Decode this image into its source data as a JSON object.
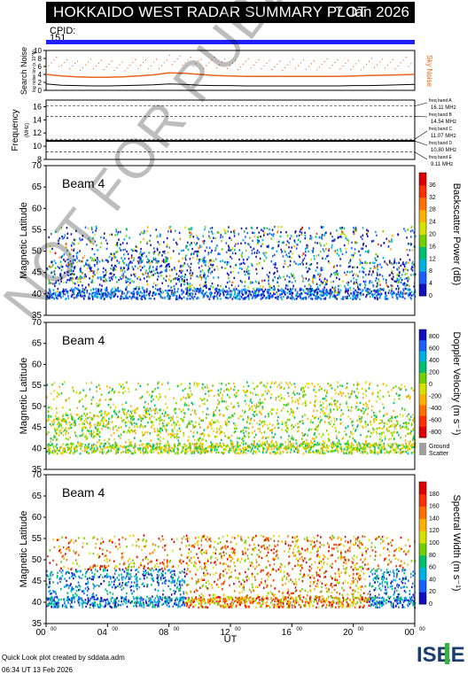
{
  "title": "HOKKAIDO WEST RADAR SUMMARY PLOT",
  "date": "7 Jan 2026",
  "cpid_label": "CPID:",
  "cpid_value": "151",
  "footer": {
    "line1": "Quick Look plot created by sddata.adm",
    "line2": "06:34 UT 13 Feb 2026"
  },
  "logo_text": "ISEE",
  "watermark": "NOT FOR PUBLICATION",
  "colors": {
    "cpid_bar": "#1f1fff",
    "sky_noise": "#e8641a",
    "search_noise": "#000000",
    "ground_scatter": "#a0a0a0"
  },
  "chart_data": [
    {
      "type": "line",
      "panel": "noise",
      "ylabel": "Search Noise",
      "ylabel_sub": "log noise lev (x 10^N)",
      "right_label": "Sky Noise",
      "yticks": [
        "0",
        "2",
        "4",
        "6",
        "8",
        "10"
      ],
      "ylim": [
        0,
        10
      ],
      "x": [
        0,
        1,
        2,
        3,
        4,
        5,
        6,
        7,
        8,
        9,
        10,
        11,
        12,
        13,
        14,
        15,
        16,
        17,
        18,
        19,
        20,
        21,
        22,
        23,
        24
      ],
      "series": [
        {
          "name": "Sky Noise",
          "values": [
            4.0,
            3.6,
            3.4,
            3.3,
            3.3,
            3.4,
            3.6,
            3.9,
            4.4,
            4.3,
            4.0,
            3.7,
            3.6,
            3.5,
            3.5,
            3.5,
            3.5,
            3.5,
            3.5,
            3.5,
            3.6,
            3.7,
            3.8,
            3.9,
            4.0
          ]
        },
        {
          "name": "Search Noise",
          "values": [
            1.6,
            1.3,
            1.2,
            1.1,
            1.1,
            1.2,
            1.3,
            1.4,
            1.6,
            1.5,
            1.3,
            1.2,
            1.2,
            1.1,
            1.1,
            1.1,
            1.1,
            1.1,
            1.1,
            1.1,
            1.2,
            1.2,
            1.3,
            1.4,
            1.5
          ]
        }
      ]
    },
    {
      "type": "line",
      "panel": "frequency",
      "ylabel": "Frequency",
      "ylabel_sub": "(MHz)",
      "yticks": [
        "8",
        "10",
        "12",
        "14",
        "16"
      ],
      "ylim": [
        8,
        17
      ],
      "x": [
        0,
        24
      ],
      "series": [
        {
          "name": "freq band A",
          "values": [
            10.8,
            10.8
          ]
        }
      ],
      "bands": [
        {
          "name": "freq band A",
          "freq": "16.11 MHz",
          "value": 16.11
        },
        {
          "name": "freq band B",
          "freq": "14.54 MHz",
          "value": 14.54
        },
        {
          "name": "freq band C",
          "freq": "11.07 MHz",
          "value": 11.07
        },
        {
          "name": "freq band D",
          "freq": "10.80 MHz",
          "value": 10.8
        },
        {
          "name": "freq band E",
          "freq": "9.11 MHz",
          "value": 9.11
        }
      ]
    },
    {
      "type": "heatmap",
      "panel": "power",
      "beam_label": "Beam  4",
      "ylabel": "Magnetic Latitude",
      "yticks": [
        "35",
        "40",
        "45",
        "50",
        "55",
        "60",
        "65",
        "70"
      ],
      "ylim": [
        35,
        70
      ],
      "colorbar_label": "Backscatter Power (dB)",
      "colorbar_ticks": [
        "0",
        "4",
        "8",
        "12",
        "16",
        "20",
        "24",
        "28",
        "32",
        "36"
      ],
      "colorbar_range": [
        0,
        38
      ],
      "colors": [
        "#1010c0",
        "#1a60ff",
        "#00b0e0",
        "#00c070",
        "#70d000",
        "#d8e000",
        "#ffb000",
        "#ff7000",
        "#ff3000",
        "#e00000"
      ]
    },
    {
      "type": "heatmap",
      "panel": "velocity",
      "beam_label": "Beam  4",
      "ylabel": "Magnetic Latitude",
      "yticks": [
        "35",
        "40",
        "45",
        "50",
        "55",
        "60",
        "65",
        "70"
      ],
      "ylim": [
        35,
        70
      ],
      "colorbar_label": "Doppler Velocity (m s⁻¹)",
      "colorbar_ticks": [
        "800",
        "600",
        "400",
        "200",
        "0",
        "-200",
        "-400",
        "-600",
        "-800"
      ],
      "colorbar_range": [
        -900,
        900
      ],
      "ground_scatter_label": "Ground Scatter",
      "colors": [
        "#1010c0",
        "#1a60ff",
        "#00b0e0",
        "#00c070",
        "#70d000",
        "#d8e000",
        "#ffb000",
        "#ff7000",
        "#ff3000",
        "#e00000"
      ]
    },
    {
      "type": "heatmap",
      "panel": "width",
      "beam_label": "Beam  4",
      "ylabel": "Magnetic Latitude",
      "yticks": [
        "35",
        "40",
        "45",
        "50",
        "55",
        "60",
        "65",
        "70"
      ],
      "ylim": [
        35,
        70
      ],
      "colorbar_label": "Spectral Width (m s⁻¹)",
      "colorbar_ticks": [
        "0",
        "20",
        "40",
        "60",
        "80",
        "100",
        "120",
        "140",
        "160",
        "180"
      ],
      "colorbar_range": [
        0,
        190
      ],
      "xlabel": "UT",
      "xticks": [
        "00",
        "04",
        "08",
        "12",
        "16",
        "20",
        "00"
      ],
      "xtick_sup": "00",
      "xlim": [
        0,
        24
      ],
      "colors": [
        "#1010c0",
        "#1a60ff",
        "#00b0e0",
        "#00c070",
        "#70d000",
        "#d8e000",
        "#ffb000",
        "#ff7000",
        "#ff3000",
        "#e00000"
      ]
    }
  ]
}
